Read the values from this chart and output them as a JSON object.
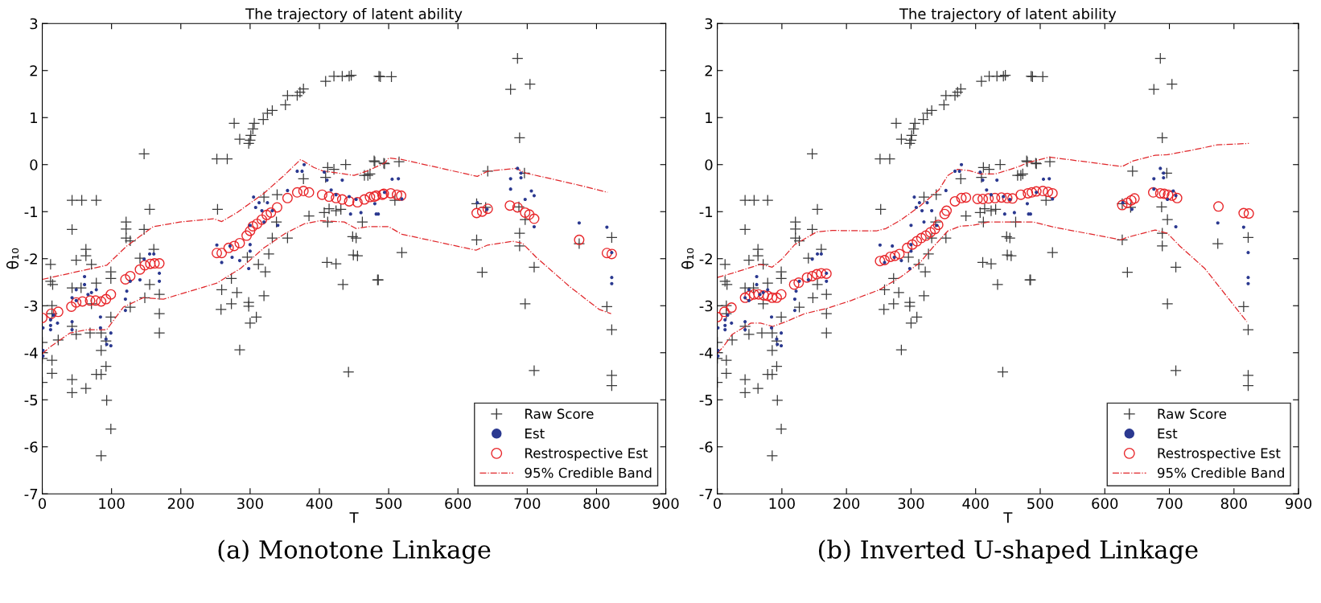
{
  "chart_data": [
    {
      "type": "scatter",
      "title": "The trajectory of latent ability",
      "xlabel": "T",
      "ylabel": "θ₁₀",
      "annotations": [
        "(a) Monotone Linkage"
      ],
      "xlim": [
        0,
        900
      ],
      "ylim": [
        -7,
        3
      ],
      "xticks": [
        0,
        100,
        200,
        300,
        400,
        500,
        600,
        700,
        800,
        900
      ],
      "yticks": [
        -7,
        -6,
        -5,
        -4,
        -3,
        -2,
        -1,
        0,
        1,
        2,
        3
      ],
      "grid": false,
      "legend": "bottom right",
      "series": [
        {
          "name": "Raw Score",
          "marker": "cross",
          "color": "#3a3a3a",
          "x": [
            0,
            0,
            0,
            14,
            14,
            14,
            14,
            12,
            12,
            15,
            23,
            43,
            57,
            78,
            43,
            43,
            43,
            43,
            43,
            49,
            63,
            63,
            71,
            56,
            49,
            69,
            63,
            78,
            71,
            85,
            85,
            85,
            78,
            85,
            92,
            93,
            99,
            99,
            99,
            99,
            92,
            121,
            121,
            121,
            127,
            127,
            147,
            147,
            155,
            141,
            155,
            148,
            161,
            169,
            169,
            169,
            252,
            267,
            253,
            259,
            258,
            273,
            273,
            281,
            277,
            285,
            285,
            298,
            300,
            301,
            304,
            306,
            298,
            298,
            300,
            309,
            296,
            312,
            319,
            325,
            332,
            320,
            322,
            327,
            320,
            332,
            339,
            338,
            351,
            354,
            368,
            372,
            377,
            354,
            385,
            377,
            409,
            421,
            433,
            443,
            446,
            409,
            412,
            421,
            438,
            407,
            412,
            414,
            424,
            431,
            411,
            424,
            434,
            442,
            448,
            453,
            449,
            455,
            462,
            465,
            470,
            479,
            486,
            484,
            493,
            488,
            504,
            480,
            494,
            515,
            473,
            509,
            519,
            485,
            686,
            676,
            704,
            689,
            643,
            696,
            627,
            640,
            688,
            697,
            627,
            635,
            689,
            689,
            710,
            697,
            710,
            775,
            822,
            815,
            822,
            822,
            822
          ],
          "values": [
            -3.78,
            -4.12,
            -4.63,
            -3.0,
            -3.17,
            -4.16,
            -4.44,
            -2.12,
            -2.48,
            -2.55,
            -3.73,
            -0.76,
            -0.76,
            -0.76,
            -1.38,
            -3.44,
            -4.57,
            -4.85,
            -2.62,
            -2.03,
            -1.8,
            -1.94,
            -2.12,
            -2.62,
            -3.61,
            -3.58,
            -4.76,
            -2.52,
            -2.96,
            -3.58,
            -3.95,
            -4.46,
            -4.46,
            -6.19,
            -4.29,
            -5.01,
            -5.62,
            -2.28,
            -2.42,
            -3.24,
            -3.75,
            -1.22,
            -1.37,
            -1.56,
            -1.62,
            -3.03,
            0.23,
            -1.38,
            -0.95,
            -1.99,
            -2.55,
            -2.83,
            -1.8,
            -2.76,
            -3.17,
            -3.58,
            0.12,
            0.12,
            -0.95,
            -2.66,
            -3.08,
            -2.42,
            -2.96,
            -2.72,
            0.88,
            0.54,
            -3.94,
            0.45,
            0.52,
            0.62,
            0.76,
            0.88,
            -2.93,
            -3.01,
            -3.37,
            -3.24,
            -1.97,
            -2.12,
            0.96,
            1.09,
            1.15,
            -2.79,
            -2.28,
            -1.9,
            -0.69,
            -1.56,
            -0.64,
            -1.22,
            1.27,
            1.47,
            1.47,
            1.54,
            1.61,
            -1.56,
            -1.09,
            -0.3,
            1.77,
            1.88,
            1.88,
            1.88,
            1.9,
            -0.27,
            -0.06,
            -0.1,
            0.0,
            -1.02,
            -1.22,
            -0.94,
            -0.98,
            -0.95,
            -2.08,
            -2.11,
            -2.55,
            -4.41,
            -1.53,
            -1.56,
            -1.92,
            -1.94,
            -1.22,
            -0.23,
            -0.23,
            0.08,
            1.88,
            -2.45,
            0.03,
            1.87,
            1.87,
            0.06,
            0.02,
            0.06,
            -0.2,
            -0.76,
            -1.87,
            -2.45,
            2.26,
            1.6,
            1.71,
            0.57,
            -0.14,
            -0.18,
            -0.83,
            -0.91,
            -0.9,
            -1.17,
            -1.6,
            -2.29,
            -1.46,
            -1.73,
            -2.18,
            -2.96,
            -4.38,
            -1.68,
            -1.55,
            -3.02,
            -3.51,
            -4.48,
            -4.7
          ]
        },
        {
          "name": "Est",
          "color": "#2b3990",
          "x": [
            1,
            1,
            1,
            12,
            12,
            12,
            16,
            22,
            43,
            43,
            43,
            49,
            49,
            61,
            61,
            66,
            71,
            78,
            84,
            84,
            92,
            99,
            99,
            93,
            120,
            120,
            122,
            127,
            141,
            147,
            155,
            161,
            169,
            169,
            252,
            259,
            271,
            274,
            285,
            298,
            300,
            300,
            300,
            305,
            308,
            313,
            317,
            320,
            325,
            332,
            340,
            354,
            368,
            375,
            378,
            407,
            411,
            417,
            424,
            433,
            443,
            445,
            453,
            460,
            482,
            480,
            485,
            494,
            505,
            514,
            519,
            628,
            642,
            676,
            676,
            686,
            691,
            691,
            697,
            706,
            710,
            710,
            775,
            815,
            822,
            822,
            822
          ],
          "values": [
            -3.47,
            -3.95,
            -4.07,
            -3.3,
            -3.42,
            -3.51,
            -3.2,
            -3.37,
            -3.34,
            -3.51,
            -2.83,
            -2.66,
            -2.89,
            -2.38,
            -2.55,
            -2.76,
            -2.72,
            -2.66,
            -3.24,
            -3.47,
            -3.71,
            -3.58,
            -3.85,
            -3.82,
            -2.86,
            -3.1,
            -2.69,
            -2.48,
            -2.45,
            -2.01,
            -1.9,
            -1.9,
            -2.31,
            -2.48,
            -1.71,
            -2.08,
            -1.73,
            -1.97,
            -2.04,
            -2.21,
            -1.84,
            -1.7,
            -1.29,
            -0.69,
            -0.91,
            -0.81,
            -0.98,
            -1.22,
            -0.81,
            -0.98,
            -1.29,
            -0.55,
            -0.14,
            -0.14,
            0.0,
            -0.16,
            -0.33,
            -0.54,
            -0.64,
            -0.33,
            -0.68,
            -1.05,
            -0.74,
            -1.02,
            -1.05,
            -0.83,
            -1.05,
            -0.59,
            -0.31,
            -0.3,
            -0.73,
            -0.81,
            -0.95,
            -0.3,
            -0.52,
            -0.08,
            -0.18,
            -0.28,
            -0.74,
            -0.56,
            -0.66,
            -1.32,
            -1.24,
            -1.33,
            -1.87,
            -2.4,
            -2.53
          ]
        },
        {
          "name": "Restrospective Est",
          "marker": "circle",
          "color": "#e8262a",
          "x": [
            0,
            13,
            23,
            42,
            49,
            58,
            69,
            77,
            85,
            92,
            99,
            120,
            127,
            141,
            148,
            156,
            162,
            169,
            252,
            259,
            269,
            277,
            285,
            295,
            300,
            304,
            310,
            317,
            324,
            330,
            339,
            354,
            368,
            377,
            385,
            404,
            414,
            424,
            433,
            443,
            455,
            465,
            479,
            491,
            473,
            482,
            493,
            503,
            512,
            518,
            627,
            635,
            643,
            675,
            686,
            697,
            703,
            710,
            775,
            815,
            822
          ],
          "values": [
            -3.26,
            -3.17,
            -3.13,
            -3.02,
            -2.93,
            -2.91,
            -2.89,
            -2.89,
            -2.91,
            -2.86,
            -2.76,
            -2.44,
            -2.37,
            -2.23,
            -2.14,
            -2.11,
            -2.1,
            -2.1,
            -1.88,
            -1.88,
            -1.77,
            -1.73,
            -1.67,
            -1.51,
            -1.41,
            -1.31,
            -1.26,
            -1.17,
            -1.07,
            -1.02,
            -0.91,
            -0.71,
            -0.59,
            -0.56,
            -0.59,
            -0.64,
            -0.68,
            -0.71,
            -0.74,
            -0.78,
            -0.8,
            -0.74,
            -0.68,
            -0.64,
            -0.69,
            -0.66,
            -0.62,
            -0.61,
            -0.64,
            -0.66,
            -1.03,
            -1.0,
            -0.94,
            -0.87,
            -0.91,
            -1.02,
            -1.06,
            -1.15,
            -1.6,
            -1.88,
            -1.9
          ]
        },
        {
          "name": "95% Credible Band",
          "type": "line",
          "line_style": "dashdot",
          "marker": "none",
          "color": "#e0262a",
          "x": [
            0,
            40,
            93,
            122,
            160,
            199,
            247,
            259,
            281,
            320,
            349,
            373,
            392,
            404,
            436,
            450,
            470,
            495,
            500,
            519,
            628,
            643,
            684,
            698,
            770,
            816
          ],
          "values": [
            -2.44,
            -2.31,
            -2.14,
            -1.73,
            -1.32,
            -1.22,
            -1.15,
            -1.21,
            -1.02,
            -0.61,
            -0.23,
            0.11,
            -0.06,
            -0.13,
            -0.2,
            -0.23,
            -0.13,
            0.04,
            0.14,
            0.11,
            -0.25,
            -0.14,
            -0.08,
            -0.18,
            -0.42,
            -0.59
          ]
        },
        {
          "type": "line",
          "line_style": "dashdot",
          "marker": "none",
          "color": "#e0262a",
          "x": [
            0,
            11,
            40,
            64,
            93,
            117,
            146,
            175,
            252,
            286,
            320,
            351,
            378,
            402,
            436,
            453,
            470,
            494,
            500,
            519,
            626,
            643,
            679,
            693,
            713,
            761,
            804,
            821
          ],
          "values": [
            -4.02,
            -3.88,
            -3.58,
            -3.51,
            -3.51,
            -3.03,
            -2.83,
            -2.86,
            -2.52,
            -2.21,
            -1.77,
            -1.46,
            -1.26,
            -1.19,
            -1.22,
            -1.36,
            -1.32,
            -1.32,
            -1.32,
            -1.48,
            -1.82,
            -1.71,
            -1.63,
            -1.67,
            -1.97,
            -2.59,
            -3.08,
            -3.17
          ]
        }
      ]
    },
    {
      "type": "scatter",
      "title": "The trajectory of latent ability",
      "xlabel": "T",
      "ylabel": "θ₁₀",
      "annotations": [
        "(b) Inverted U-shaped Linkage"
      ],
      "xlim": [
        0,
        900
      ],
      "ylim": [
        -7,
        3
      ],
      "xticks": [
        0,
        100,
        200,
        300,
        400,
        500,
        600,
        700,
        800,
        900
      ],
      "yticks": [
        -7,
        -6,
        -5,
        -4,
        -3,
        -2,
        -1,
        0,
        1,
        2,
        3
      ],
      "grid": false,
      "legend": "bottom right",
      "series": [
        {
          "name": "Raw Score",
          "marker": "cross",
          "color": "#3a3a3a",
          "x": [
            0,
            0,
            0,
            14,
            14,
            14,
            14,
            12,
            12,
            15,
            23,
            43,
            57,
            78,
            43,
            43,
            43,
            43,
            43,
            49,
            63,
            63,
            71,
            56,
            49,
            69,
            63,
            78,
            71,
            85,
            85,
            85,
            78,
            85,
            92,
            93,
            99,
            99,
            99,
            99,
            92,
            121,
            121,
            121,
            127,
            127,
            147,
            147,
            155,
            141,
            155,
            148,
            161,
            169,
            169,
            169,
            252,
            267,
            253,
            259,
            258,
            273,
            273,
            281,
            277,
            285,
            285,
            298,
            300,
            301,
            304,
            306,
            298,
            298,
            300,
            309,
            296,
            312,
            319,
            325,
            332,
            320,
            322,
            327,
            320,
            332,
            339,
            338,
            351,
            354,
            368,
            372,
            377,
            354,
            385,
            377,
            409,
            421,
            433,
            443,
            446,
            409,
            412,
            421,
            438,
            407,
            412,
            414,
            424,
            431,
            411,
            424,
            434,
            442,
            448,
            453,
            449,
            455,
            462,
            465,
            470,
            479,
            486,
            484,
            493,
            488,
            504,
            480,
            494,
            515,
            473,
            509,
            519,
            485,
            686,
            676,
            704,
            689,
            643,
            696,
            627,
            640,
            688,
            697,
            627,
            635,
            689,
            689,
            710,
            697,
            710,
            775,
            822,
            815,
            822,
            822,
            822
          ],
          "values": [
            -3.78,
            -4.12,
            -4.63,
            -3.0,
            -3.17,
            -4.16,
            -4.44,
            -2.12,
            -2.48,
            -2.55,
            -3.73,
            -0.76,
            -0.76,
            -0.76,
            -1.38,
            -3.44,
            -4.57,
            -4.85,
            -2.62,
            -2.03,
            -1.8,
            -1.94,
            -2.12,
            -2.62,
            -3.61,
            -3.58,
            -4.76,
            -2.52,
            -2.96,
            -3.58,
            -3.95,
            -4.46,
            -4.46,
            -6.19,
            -4.29,
            -5.01,
            -5.62,
            -2.28,
            -2.42,
            -3.24,
            -3.75,
            -1.22,
            -1.37,
            -1.56,
            -1.62,
            -3.03,
            0.23,
            -1.38,
            -0.95,
            -1.99,
            -2.55,
            -2.83,
            -1.8,
            -2.76,
            -3.17,
            -3.58,
            0.12,
            0.12,
            -0.95,
            -2.66,
            -3.08,
            -2.42,
            -2.96,
            -2.72,
            0.88,
            0.54,
            -3.94,
            0.45,
            0.52,
            0.62,
            0.76,
            0.88,
            -2.93,
            -3.01,
            -3.37,
            -3.24,
            -1.97,
            -2.12,
            0.96,
            1.09,
            1.15,
            -2.79,
            -2.28,
            -1.9,
            -0.69,
            -1.56,
            -0.64,
            -1.22,
            1.27,
            1.47,
            1.47,
            1.54,
            1.61,
            -1.56,
            -1.09,
            -0.3,
            1.77,
            1.88,
            1.88,
            1.88,
            1.9,
            -0.27,
            -0.06,
            -0.1,
            0.0,
            -1.02,
            -1.22,
            -0.94,
            -0.98,
            -0.95,
            -2.08,
            -2.11,
            -2.55,
            -4.41,
            -1.53,
            -1.56,
            -1.92,
            -1.94,
            -1.22,
            -0.23,
            -0.23,
            0.08,
            1.88,
            -2.45,
            0.03,
            1.87,
            1.87,
            0.06,
            0.02,
            0.06,
            -0.2,
            -0.76,
            -1.87,
            -2.45,
            2.26,
            1.6,
            1.71,
            0.57,
            -0.14,
            -0.18,
            -0.83,
            -0.91,
            -0.9,
            -1.17,
            -1.6,
            -2.29,
            -1.46,
            -1.73,
            -2.18,
            -2.96,
            -4.38,
            -1.68,
            -1.55,
            -3.02,
            -3.51,
            -4.48,
            -4.7
          ]
        },
        {
          "name": "Est",
          "color": "#2b3990",
          "x": [
            1,
            1,
            1,
            12,
            12,
            12,
            16,
            22,
            43,
            43,
            43,
            49,
            49,
            61,
            61,
            66,
            71,
            78,
            84,
            84,
            92,
            99,
            99,
            93,
            120,
            120,
            122,
            127,
            141,
            147,
            155,
            161,
            169,
            169,
            252,
            259,
            271,
            274,
            285,
            298,
            300,
            300,
            300,
            305,
            308,
            313,
            317,
            320,
            325,
            332,
            340,
            354,
            368,
            375,
            378,
            407,
            411,
            417,
            424,
            433,
            443,
            445,
            453,
            460,
            482,
            480,
            485,
            494,
            505,
            514,
            519,
            628,
            642,
            676,
            676,
            686,
            691,
            691,
            697,
            706,
            710,
            710,
            775,
            815,
            822,
            822,
            822
          ],
          "values": [
            -3.47,
            -3.95,
            -4.07,
            -3.3,
            -3.42,
            -3.51,
            -3.2,
            -3.37,
            -3.34,
            -3.51,
            -2.83,
            -2.66,
            -2.89,
            -2.38,
            -2.55,
            -2.76,
            -2.72,
            -2.66,
            -3.24,
            -3.47,
            -3.71,
            -3.58,
            -3.85,
            -3.82,
            -2.86,
            -3.1,
            -2.69,
            -2.48,
            -2.45,
            -2.01,
            -1.9,
            -1.9,
            -2.31,
            -2.48,
            -1.71,
            -2.08,
            -1.73,
            -1.97,
            -2.04,
            -2.21,
            -1.84,
            -1.7,
            -1.29,
            -0.69,
            -0.91,
            -0.81,
            -0.98,
            -1.22,
            -0.81,
            -0.98,
            -1.29,
            -0.55,
            -0.14,
            -0.14,
            0.0,
            -0.16,
            -0.33,
            -0.54,
            -0.64,
            -0.33,
            -0.68,
            -1.05,
            -0.74,
            -1.02,
            -1.05,
            -0.83,
            -1.05,
            -0.59,
            -0.31,
            -0.3,
            -0.73,
            -0.81,
            -0.95,
            -0.3,
            -0.52,
            -0.08,
            -0.18,
            -0.28,
            -0.74,
            -0.56,
            -0.66,
            -1.32,
            -1.24,
            -1.33,
            -1.87,
            -2.4,
            -2.53
          ]
        },
        {
          "name": "Restrospective Est",
          "marker": "circle",
          "color": "#e8262a",
          "x": [
            0,
            11,
            22,
            43,
            50,
            57,
            64,
            72,
            78,
            85,
            92,
            99,
            119,
            126,
            139,
            147,
            154,
            161,
            169,
            252,
            259,
            268,
            275,
            282,
            294,
            302,
            309,
            316,
            323,
            330,
            337,
            342,
            352,
            355,
            368,
            378,
            385,
            403,
            411,
            420,
            430,
            440,
            449,
            457,
            470,
            481,
            487,
            494,
            504,
            512,
            519,
            627,
            635,
            641,
            646,
            675,
            686,
            692,
            698,
            704,
            712,
            776,
            815,
            823
          ],
          "values": [
            -3.24,
            -3.13,
            -3.04,
            -2.83,
            -2.79,
            -2.76,
            -2.76,
            -2.78,
            -2.79,
            -2.83,
            -2.83,
            -2.76,
            -2.55,
            -2.51,
            -2.4,
            -2.37,
            -2.33,
            -2.31,
            -2.32,
            -2.05,
            -2.03,
            -1.96,
            -1.94,
            -1.9,
            -1.77,
            -1.7,
            -1.63,
            -1.56,
            -1.51,
            -1.44,
            -1.37,
            -1.28,
            -1.05,
            -0.98,
            -0.78,
            -0.71,
            -0.7,
            -0.73,
            -0.73,
            -0.72,
            -0.71,
            -0.7,
            -0.71,
            -0.72,
            -0.64,
            -0.61,
            -0.59,
            -0.57,
            -0.56,
            -0.58,
            -0.61,
            -0.86,
            -0.81,
            -0.76,
            -0.72,
            -0.59,
            -0.61,
            -0.62,
            -0.64,
            -0.66,
            -0.71,
            -0.89,
            -1.03,
            -1.04
          ]
        },
        {
          "name": "95% Credible Band",
          "type": "line",
          "line_style": "dashdot",
          "marker": "none",
          "color": "#e0262a",
          "x": [
            0,
            23,
            67,
            85,
            100,
            120,
            154,
            178,
            246,
            261,
            285,
            314,
            343,
            357,
            372,
            391,
            408,
            430,
            454,
            469,
            480,
            514,
            627,
            644,
            678,
            697,
            736,
            774,
            823
          ],
          "values": [
            -2.4,
            -2.31,
            -2.12,
            -2.18,
            -2.01,
            -1.7,
            -1.43,
            -1.4,
            -1.41,
            -1.36,
            -1.17,
            -0.88,
            -0.54,
            -0.23,
            -0.1,
            -0.13,
            -0.2,
            -0.2,
            -0.1,
            -0.03,
            0.04,
            0.16,
            -0.04,
            0.08,
            0.2,
            0.21,
            0.31,
            0.42,
            0.45
          ]
        },
        {
          "type": "line",
          "line_style": "dashdot",
          "marker": "none",
          "color": "#e0262a",
          "x": [
            0,
            9,
            23,
            52,
            67,
            86,
            106,
            135,
            169,
            207,
            251,
            285,
            314,
            333,
            357,
            376,
            396,
            420,
            449,
            478,
            489,
            518,
            625,
            634,
            678,
            697,
            716,
            755,
            798,
            820
          ],
          "values": [
            -4.01,
            -3.88,
            -3.61,
            -3.37,
            -3.37,
            -3.44,
            -3.34,
            -3.17,
            -3.06,
            -2.89,
            -2.66,
            -2.38,
            -2.08,
            -1.77,
            -1.41,
            -1.31,
            -1.29,
            -1.22,
            -1.22,
            -1.22,
            -1.22,
            -1.32,
            -1.6,
            -1.55,
            -1.39,
            -1.46,
            -1.73,
            -2.21,
            -2.96,
            -3.34
          ]
        }
      ]
    }
  ]
}
